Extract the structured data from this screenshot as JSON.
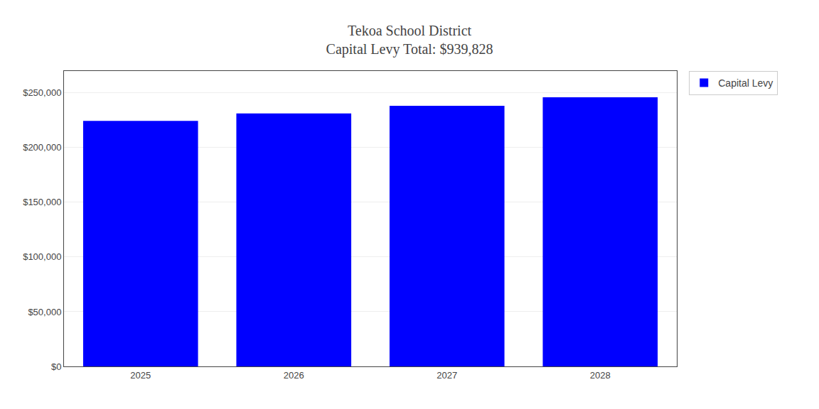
{
  "chart_data": {
    "type": "bar",
    "title": "Tekoa School District",
    "subtitle": "Capital Levy Total: $939,828",
    "categories": [
      "2025",
      "2026",
      "2027",
      "2028"
    ],
    "series": [
      {
        "name": "Capital Levy",
        "color": "#0000ff",
        "values": [
          224457,
          231191,
          238127,
          246053
        ]
      }
    ],
    "ylim": [
      0,
      270000
    ],
    "yticks": [
      {
        "value": 0,
        "label": "$0"
      },
      {
        "value": 50000,
        "label": "$50,000"
      },
      {
        "value": 100000,
        "label": "$100,000"
      },
      {
        "value": 150000,
        "label": "$150,000"
      },
      {
        "value": 200000,
        "label": "$200,000"
      },
      {
        "value": 250000,
        "label": "$250,000"
      }
    ],
    "grid": true,
    "legend": "right"
  }
}
